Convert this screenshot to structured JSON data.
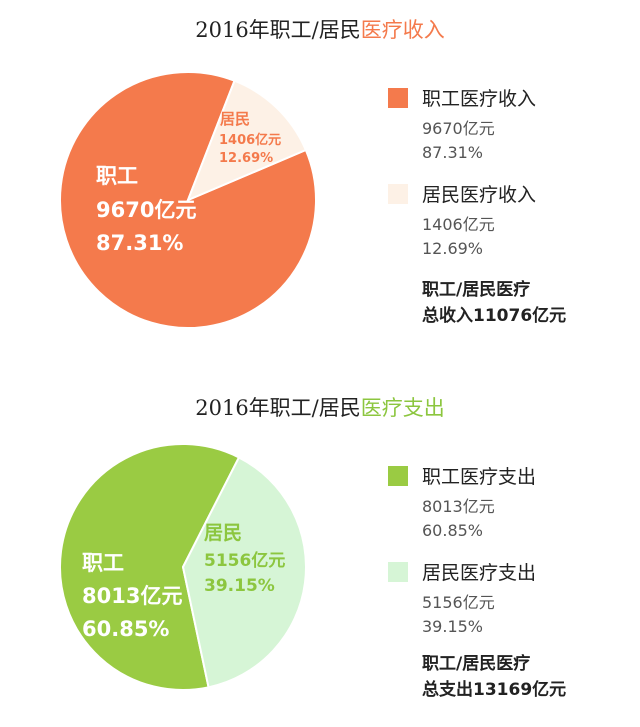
{
  "colors": {
    "income_accent": "#f47a4c",
    "income_employee": "#f47a4c",
    "income_resident": "#fdf1e6",
    "income_resident_text": "#f47a4c",
    "expense_accent": "#8cc63f",
    "expense_employee": "#9acb43",
    "expense_resident": "#d6f5d6",
    "expense_resident_text": "#8cc63f"
  },
  "chart_data": [
    {
      "type": "pie",
      "title": "2016年职工/居民医疗收入",
      "title_plain": "2016年职工/居民",
      "title_highlight": "医疗收入",
      "unit": "亿元",
      "slices": [
        {
          "name": "职工医疗收入",
          "short": "职工",
          "value": 9670,
          "value_label": "9670亿元",
          "percent": 87.31,
          "percent_label": "87.31%",
          "legend_percent": "87.31%"
        },
        {
          "name": "居民医疗收入",
          "short": "居民",
          "value": 1406,
          "value_label": "1406亿元",
          "percent": 12.69,
          "percent_label": "12.69%",
          "legend_percent": "12.69%"
        }
      ],
      "total_line1": "职工/居民医疗",
      "total_line2": "总收入11076亿元",
      "legend_position": "right"
    },
    {
      "type": "pie",
      "title": "2016年职工/居民医疗支出",
      "title_plain": "2016年职工/居民",
      "title_highlight": "医疗支出",
      "unit": "亿元",
      "slices": [
        {
          "name": "职工医疗支出",
          "short": "职工",
          "value": 8013,
          "value_label": "8013亿元",
          "percent": 60.85,
          "percent_label": "60.85%",
          "legend_percent": "60.85%"
        },
        {
          "name": "居民医疗支出",
          "short": "居民",
          "value": 5156,
          "value_label": "5156亿元",
          "percent": 39.15,
          "percent_label": "39.15%",
          "legend_percent": "39.15%"
        }
      ],
      "total_line1": "职工/居民医疗",
      "total_line2": "总支出13169亿元",
      "legend_position": "right"
    }
  ]
}
